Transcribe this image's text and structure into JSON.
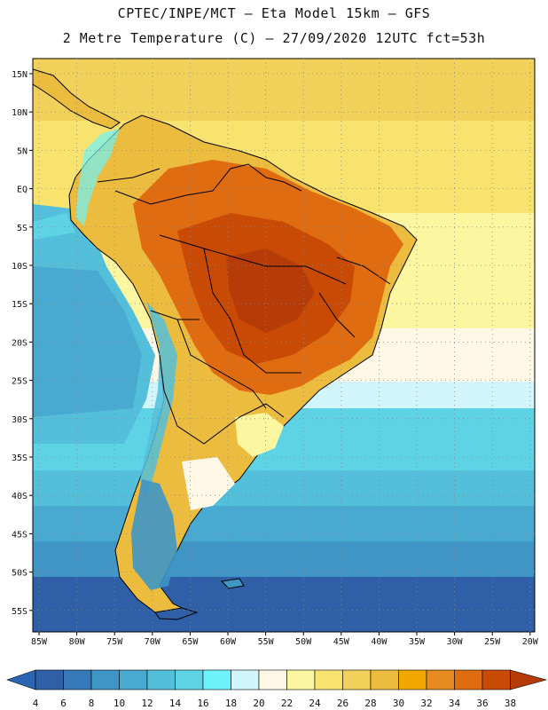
{
  "header": {
    "line1": "CPTEC/INPE/MCT –  Eta Model 15km – GFS",
    "line2": "2 Metre Temperature (C) – 27/09/2020 12UTC fct=53h"
  },
  "map": {
    "lat_labels": [
      "15N",
      "10N",
      "5N",
      "EQ",
      "5S",
      "10S",
      "15S",
      "20S",
      "25S",
      "30S",
      "35S",
      "40S",
      "45S",
      "50S",
      "55S"
    ],
    "lon_labels": [
      "85W",
      "80W",
      "75W",
      "70W",
      "65W",
      "60W",
      "55W",
      "50W",
      "45W",
      "40W",
      "35W",
      "30W",
      "25W",
      "20W"
    ]
  },
  "colorbar": {
    "labels": [
      "4",
      "6",
      "8",
      "10",
      "12",
      "14",
      "16",
      "18",
      "20",
      "22",
      "24",
      "26",
      "28",
      "30",
      "32",
      "34",
      "36",
      "38"
    ],
    "colors": [
      "#2f5fa6",
      "#3679b8",
      "#3e95c6",
      "#48aad0",
      "#54bfdb",
      "#5fd3e6",
      "#6ef2fb",
      "#d1f5fb",
      "#fff8e6",
      "#fcf6a0",
      "#f7e36e",
      "#f2d15a",
      "#ecbc3e",
      "#f0a800",
      "#e78a1f",
      "#df6c10",
      "#c94a05"
    ],
    "low_color": "#2b64b0",
    "high_color": "#b53b08"
  }
}
